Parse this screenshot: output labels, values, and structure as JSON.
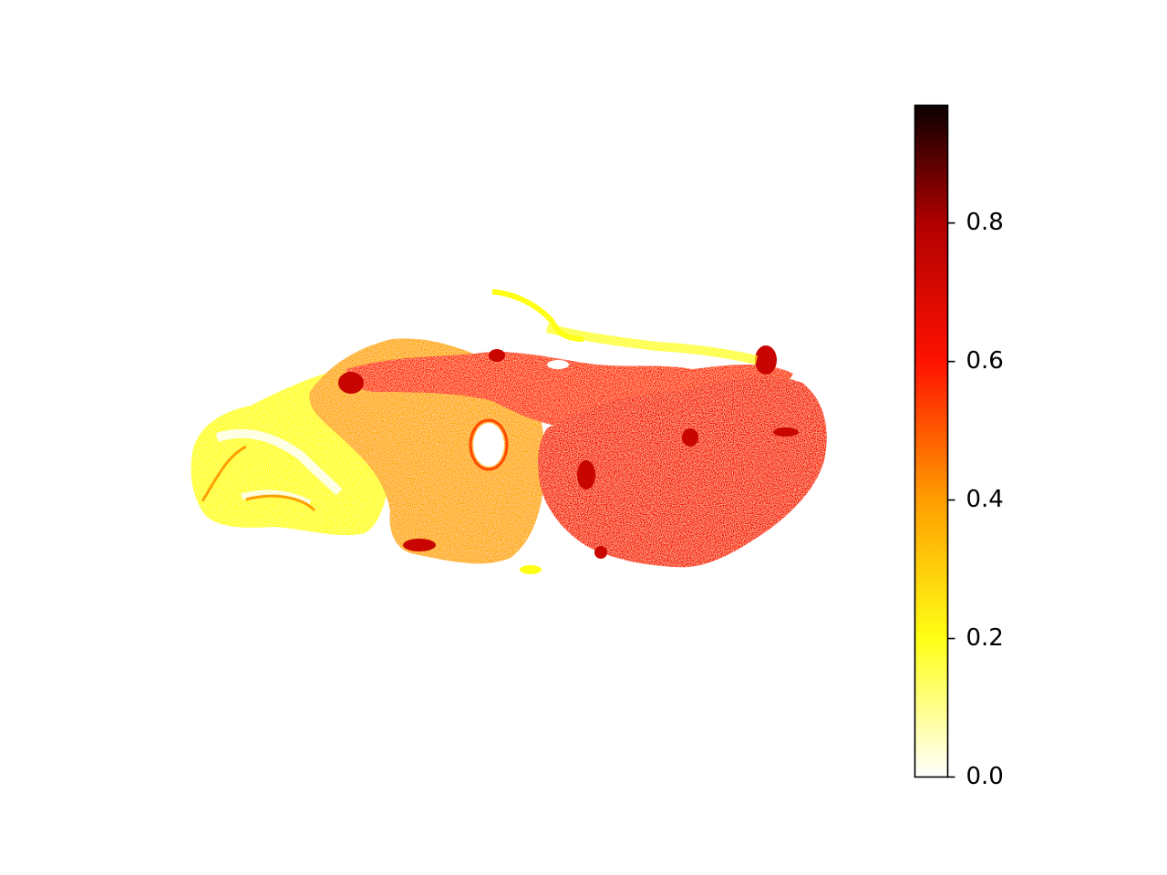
{
  "chart_data": {
    "type": "heatmap",
    "title": "",
    "xlabel": "",
    "ylabel": "",
    "axes_visible": false,
    "grid": false,
    "colormap": "hot_r",
    "colormap_stops": [
      {
        "value": 0.0,
        "color": "#ffffff"
      },
      {
        "value": 0.2,
        "color": "#ffff16"
      },
      {
        "value": 0.4,
        "color": "#ff9e00"
      },
      {
        "value": 0.6,
        "color": "#ff1200"
      },
      {
        "value": 0.8,
        "color": "#b00000"
      },
      {
        "value": 0.97,
        "color": "#0b0000"
      }
    ],
    "colorbar": {
      "position": "right",
      "range": [
        0.0,
        0.97
      ],
      "ticks": [
        0.0,
        0.2,
        0.4,
        0.6,
        0.8
      ],
      "tick_labels": [
        "0.0",
        "0.2",
        "0.4",
        "0.6",
        "0.8"
      ]
    },
    "regions": [
      {
        "name": "left-lobe",
        "value": 0.2
      },
      {
        "name": "center-left-lobe",
        "value": 0.38
      },
      {
        "name": "center-upper-band",
        "value": 0.58
      },
      {
        "name": "right-lobe",
        "value": 0.62
      }
    ]
  }
}
